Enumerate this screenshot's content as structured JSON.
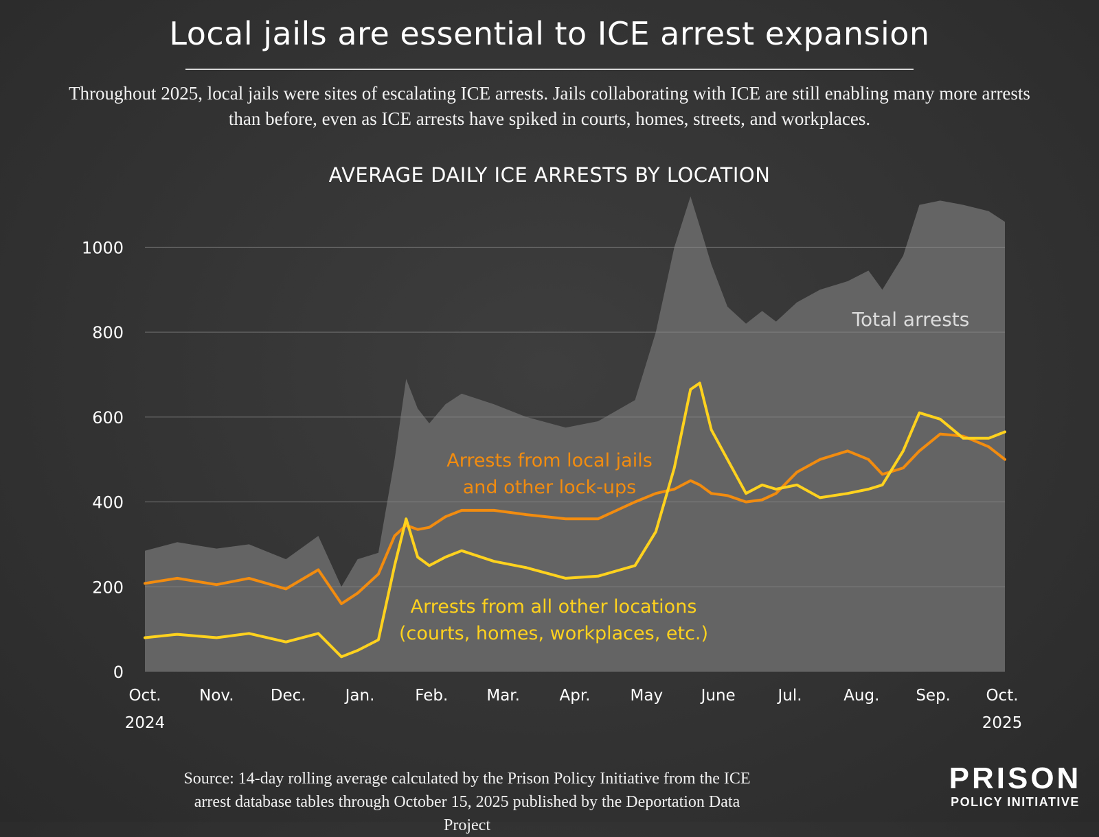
{
  "header": {
    "title": "Local jails are essential to ICE arrest expansion",
    "subtitle": "Throughout 2025, local jails were sites of escalating ICE arrests. Jails collaborating with ICE are still enabling many more arrests than before, even as ICE arrests have spiked in courts, homes, streets, and workplaces."
  },
  "footer": {
    "source": "Source: 14-day rolling average calculated by the Prison Policy Initiative from the ICE arrest database tables through October 15, 2025 published by the Deportation Data Project",
    "logo_top": "PRISON",
    "logo_bottom": "POLICY INITIATIVE"
  },
  "colors": {
    "total": "#646464",
    "jails": "#f28c0f",
    "other": "#ffd21e",
    "grid": "#8a8a8a",
    "text": "#ffffff",
    "total_label": "#dcdcdc"
  },
  "chart_data": {
    "type": "area",
    "title": "AVERAGE DAILY ICE ARRESTS BY LOCATION",
    "xlabel": "",
    "ylabel": "",
    "ylim": [
      0,
      1130
    ],
    "yticks": [
      0,
      200,
      400,
      600,
      800,
      1000
    ],
    "grid": true,
    "x_tick_labels": [
      {
        "label": "Oct.",
        "year": "2024"
      },
      {
        "label": "Nov.",
        "year": ""
      },
      {
        "label": "Dec.",
        "year": ""
      },
      {
        "label": "Jan.",
        "year": ""
      },
      {
        "label": "Feb.",
        "year": ""
      },
      {
        "label": "Mar.",
        "year": ""
      },
      {
        "label": "Apr.",
        "year": ""
      },
      {
        "label": "May",
        "year": ""
      },
      {
        "label": "June",
        "year": ""
      },
      {
        "label": "Jul.",
        "year": ""
      },
      {
        "label": "Aug.",
        "year": ""
      },
      {
        "label": "Sep.",
        "year": ""
      },
      {
        "label": "Oct.",
        "year": "2025"
      }
    ],
    "x": [
      "2024-10-01",
      "2024-10-15",
      "2024-11-01",
      "2024-11-15",
      "2024-12-01",
      "2024-12-15",
      "2024-12-25",
      "2025-01-01",
      "2025-01-10",
      "2025-01-17",
      "2025-01-22",
      "2025-01-27",
      "2025-02-01",
      "2025-02-08",
      "2025-02-15",
      "2025-03-01",
      "2025-03-15",
      "2025-04-01",
      "2025-04-15",
      "2025-05-01",
      "2025-05-10",
      "2025-05-18",
      "2025-05-25",
      "2025-05-29",
      "2025-06-03",
      "2025-06-10",
      "2025-06-18",
      "2025-06-25",
      "2025-07-01",
      "2025-07-10",
      "2025-07-20",
      "2025-08-01",
      "2025-08-10",
      "2025-08-16",
      "2025-08-25",
      "2025-09-01",
      "2025-09-10",
      "2025-09-20",
      "2025-10-01",
      "2025-10-08"
    ],
    "series": [
      {
        "name": "Total arrests",
        "kind": "area",
        "values": [
          285,
          305,
          290,
          300,
          265,
          320,
          200,
          265,
          280,
          500,
          690,
          620,
          585,
          630,
          655,
          630,
          600,
          575,
          590,
          640,
          800,
          1000,
          1120,
          1050,
          960,
          860,
          820,
          850,
          825,
          870,
          900,
          920,
          945,
          900,
          980,
          1100,
          1110,
          1100,
          1085,
          1060
        ]
      },
      {
        "name": "Arrests from local jails and other lock-ups",
        "kind": "line",
        "values": [
          208,
          220,
          205,
          220,
          195,
          240,
          160,
          185,
          230,
          320,
          345,
          335,
          340,
          365,
          380,
          380,
          370,
          360,
          360,
          400,
          420,
          430,
          450,
          440,
          420,
          415,
          400,
          405,
          420,
          470,
          500,
          520,
          500,
          465,
          480,
          520,
          560,
          555,
          530,
          500
        ]
      },
      {
        "name": "Arrests from all other locations (courts, homes, workplaces, etc.)",
        "kind": "line",
        "values": [
          80,
          88,
          80,
          90,
          70,
          90,
          35,
          50,
          75,
          250,
          360,
          270,
          250,
          270,
          285,
          260,
          245,
          220,
          225,
          250,
          330,
          480,
          665,
          680,
          570,
          500,
          420,
          440,
          430,
          440,
          410,
          420,
          430,
          440,
          520,
          610,
          595,
          550,
          550,
          565
        ]
      }
    ],
    "annotations": [
      {
        "text": "Total arrests",
        "series": 0
      },
      {
        "text": "Arrests from local jails",
        "series": 1
      },
      {
        "text": "and other lock-ups",
        "series": 1
      },
      {
        "text": "Arrests from all other locations",
        "series": 2
      },
      {
        "text": "(courts, homes, workplaces, etc.)",
        "series": 2
      }
    ]
  }
}
